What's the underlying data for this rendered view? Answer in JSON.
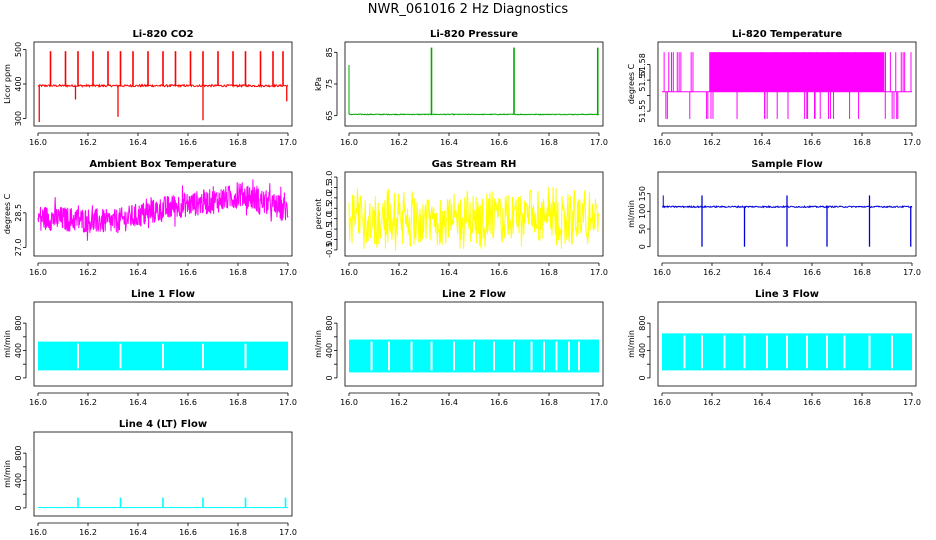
{
  "figure_title": "NWR_061016 2 Hz Diagnostics",
  "chart_data": [
    {
      "id": "co2",
      "type": "line",
      "title": "Li-820 CO2",
      "ylabel": "Licor ppm",
      "xlim": [
        16.0,
        17.0
      ],
      "ylim": [
        290,
        510
      ],
      "yticks": [
        300,
        400,
        500
      ],
      "ytick_labels": [
        "300",
        "400",
        "500"
      ],
      "color": "#ff0000",
      "baseline": 395,
      "noise": 6,
      "pattern": "spikes_up",
      "spikes_x": [
        16.05,
        16.11,
        16.16,
        16.22,
        16.28,
        16.33,
        16.38,
        16.44,
        16.5,
        16.55,
        16.61,
        16.66,
        16.72,
        16.78,
        16.83,
        16.89,
        16.94,
        16.98
      ],
      "spike_top": 495,
      "dips": [
        {
          "x": 16.005,
          "y": 290
        },
        {
          "x": 16.15,
          "y": 355
        },
        {
          "x": 16.32,
          "y": 305
        },
        {
          "x": 16.66,
          "y": 295
        },
        {
          "x": 16.995,
          "y": 350
        }
      ]
    },
    {
      "id": "press",
      "type": "line",
      "title": "Li-820 Pressure",
      "ylabel": "kPa",
      "xlim": [
        16.0,
        17.0
      ],
      "ylim": [
        63,
        87
      ],
      "yticks": [
        65,
        75,
        85
      ],
      "ytick_labels": [
        "65",
        "75",
        "85"
      ],
      "color": "#00aa00",
      "baseline": 65.4,
      "noise": 0.25,
      "pattern": "pressure",
      "spikes_x": [
        16.33,
        16.66,
        16.995
      ],
      "spike_top": 86.5,
      "start_top": 81
    },
    {
      "id": "temp",
      "type": "line",
      "title": "Li-820 Temperature",
      "ylabel": "degrees C",
      "xlim": [
        16.0,
        17.0
      ],
      "ylim": [
        51.543,
        51.592
      ],
      "yticks": [
        51.55,
        51.56,
        51.57,
        51.58
      ],
      "ytick_labels": [
        "51.55",
        "",
        "51.57",
        "51.58"
      ],
      "color": "#ff00ff",
      "pattern": "temp_steps",
      "levels": [
        51.545,
        51.5625,
        51.588
      ],
      "dense_range": [
        16.19,
        16.89
      ]
    },
    {
      "id": "ambient",
      "type": "line",
      "title": "Ambient Box Temperature",
      "ylabel": "degrees C",
      "xlim": [
        16.0,
        17.0
      ],
      "ylim": [
        26.8,
        30.1
      ],
      "yticks": [
        27.0,
        28.5
      ],
      "ytick_labels": [
        "27.0",
        "28.5"
      ],
      "color": "#ff00ff",
      "pattern": "ambient",
      "noise": 0.55,
      "trend": [
        [
          16.0,
          28.3
        ],
        [
          16.3,
          28.1
        ],
        [
          16.55,
          28.8
        ],
        [
          16.7,
          29.0
        ],
        [
          16.82,
          29.3
        ],
        [
          17.0,
          28.6
        ]
      ]
    },
    {
      "id": "rh",
      "type": "line",
      "title": "Gas Stream RH",
      "ylabel": "percent",
      "xlim": [
        16.0,
        17.0
      ],
      "ylim": [
        -0.6,
        3.05
      ],
      "yticks": [
        -0.5,
        0.0,
        0.5,
        1.0,
        1.5,
        2.0,
        2.5,
        3.0
      ],
      "ytick_labels": [
        "-0.5",
        "0.0",
        "0.5",
        "1.0",
        "1.5",
        "2.0",
        "2.5",
        "3.0"
      ],
      "color": "#ffff00",
      "baseline": 1.0,
      "noise": 1.5,
      "pattern": "noise"
    },
    {
      "id": "sample",
      "type": "line",
      "title": "Sample Flow",
      "ylabel": "ml/min",
      "xlim": [
        16.0,
        17.0
      ],
      "ylim": [
        -15,
        200
      ],
      "yticks": [
        0,
        50,
        100,
        150
      ],
      "ytick_labels": [
        "0",
        "50",
        "100",
        "150"
      ],
      "color": "#0000dd",
      "baseline": 113,
      "noise": 4,
      "pattern": "flow_dips",
      "dips_x": [
        16.16,
        16.33,
        16.5,
        16.66,
        16.83,
        16.995
      ],
      "dip_to": 0,
      "spike_top": 145
    },
    {
      "id": "line1",
      "type": "line",
      "title": "Line 1 Flow",
      "ylabel": "ml/min",
      "xlim": [
        16.0,
        17.0
      ],
      "ylim": [
        -60,
        1050
      ],
      "yticks": [
        0,
        400,
        800
      ],
      "ytick_labels": [
        "0",
        "400",
        "800"
      ],
      "minor_ticks": [
        200,
        600
      ],
      "color": "#00ffff",
      "pattern": "band",
      "band": [
        110,
        530
      ],
      "gaps": [
        16.16,
        16.33,
        16.5,
        16.66,
        16.83
      ]
    },
    {
      "id": "line2",
      "type": "line",
      "title": "Line 2 Flow",
      "ylabel": "ml/min",
      "xlim": [
        16.0,
        17.0
      ],
      "ylim": [
        -60,
        1050
      ],
      "yticks": [
        0,
        400,
        800
      ],
      "ytick_labels": [
        "0",
        "400",
        "800"
      ],
      "minor_ticks": [
        200,
        600
      ],
      "color": "#00ffff",
      "pattern": "band",
      "band": [
        80,
        560
      ],
      "gaps": [
        16.09,
        16.16,
        16.25,
        16.33,
        16.42,
        16.5,
        16.58,
        16.66,
        16.73,
        16.78,
        16.83,
        16.88,
        16.92
      ]
    },
    {
      "id": "line3",
      "type": "line",
      "title": "Line 3 Flow",
      "ylabel": "ml/min",
      "xlim": [
        16.0,
        17.0
      ],
      "ylim": [
        -60,
        1050
      ],
      "yticks": [
        0,
        400,
        800
      ],
      "ytick_labels": [
        "0",
        "400",
        "800"
      ],
      "minor_ticks": [
        200,
        600
      ],
      "color": "#00ffff",
      "pattern": "band",
      "band": [
        110,
        650
      ],
      "gaps": [
        16.09,
        16.16,
        16.25,
        16.33,
        16.42,
        16.5,
        16.58,
        16.66,
        16.73,
        16.83,
        16.92
      ]
    },
    {
      "id": "line4",
      "type": "line",
      "title": "Line 4 (LT) Flow",
      "ylabel": "ml/min",
      "xlim": [
        16.0,
        17.0
      ],
      "ylim": [
        -60,
        1050
      ],
      "yticks": [
        0,
        400,
        800
      ],
      "ytick_labels": [
        "0",
        "400",
        "800"
      ],
      "minor_ticks": [
        200,
        600
      ],
      "color": "#00ffff",
      "baseline": 5,
      "noise": 2,
      "pattern": "spikes_up",
      "spikes_x": [
        16.16,
        16.33,
        16.5,
        16.66,
        16.83,
        16.99
      ],
      "spike_top": 150
    }
  ],
  "xticks": [
    16.0,
    16.2,
    16.4,
    16.6,
    16.8,
    17.0
  ],
  "xtick_labels": [
    "16.0",
    "16.2",
    "16.4",
    "16.6",
    "16.8",
    "17.0"
  ]
}
